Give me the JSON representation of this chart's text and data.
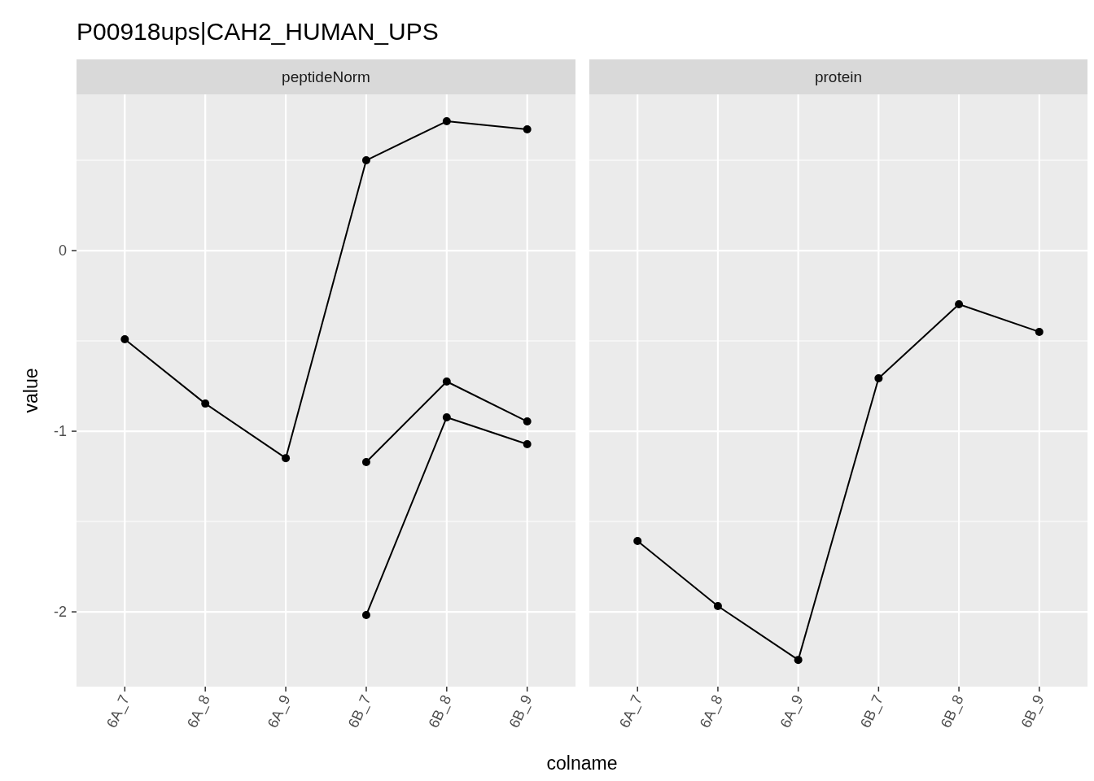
{
  "chart_data": [
    {
      "type": "line",
      "title": "P00918ups|CAH2_HUMAN_UPS",
      "subtitle": "peptideNorm",
      "xlabel": "colname",
      "ylabel": "value",
      "categories": [
        "6A_7",
        "6A_8",
        "6A_9",
        "6B_7",
        "6B_8",
        "6B_9"
      ],
      "ylim": [
        -2.414,
        0.865
      ],
      "yticks": [
        -2,
        {
          "value": -1.5,
          "label": null
        },
        -1,
        {
          "value": -0.5,
          "label": null
        },
        0,
        {
          "value": 0.5,
          "label": null
        }
      ],
      "grid": true,
      "marker": "circle",
      "line_style": "solid",
      "series": [
        {
          "color": "#000000",
          "values": [
            -0.491,
            -0.847,
            -1.149,
            0.5,
            0.716,
            0.671
          ]
        },
        {
          "color": "#000000",
          "values": [
            null,
            null,
            null,
            -1.171,
            -0.725,
            -0.946
          ]
        },
        {
          "color": "#000000",
          "values": [
            null,
            null,
            null,
            -2.018,
            -0.923,
            -1.072
          ]
        }
      ]
    },
    {
      "type": "line",
      "subtitle": "protein",
      "categories": [
        "6A_7",
        "6A_8",
        "6A_9",
        "6B_7",
        "6B_8",
        "6B_9"
      ],
      "ylim": [
        -2.414,
        0.865
      ],
      "yticks": [
        -2,
        {
          "value": -1.5,
          "label": null
        },
        -1,
        {
          "value": -0.5,
          "label": null
        },
        0,
        {
          "value": 0.5,
          "label": null
        }
      ],
      "tick_labels": "x",
      "grid": true,
      "marker": "circle",
      "line_style": "solid",
      "series": [
        {
          "color": "#000000",
          "values": [
            -1.608,
            -1.968,
            -2.266,
            -0.707,
            -0.297,
            -0.45
          ]
        }
      ]
    }
  ]
}
